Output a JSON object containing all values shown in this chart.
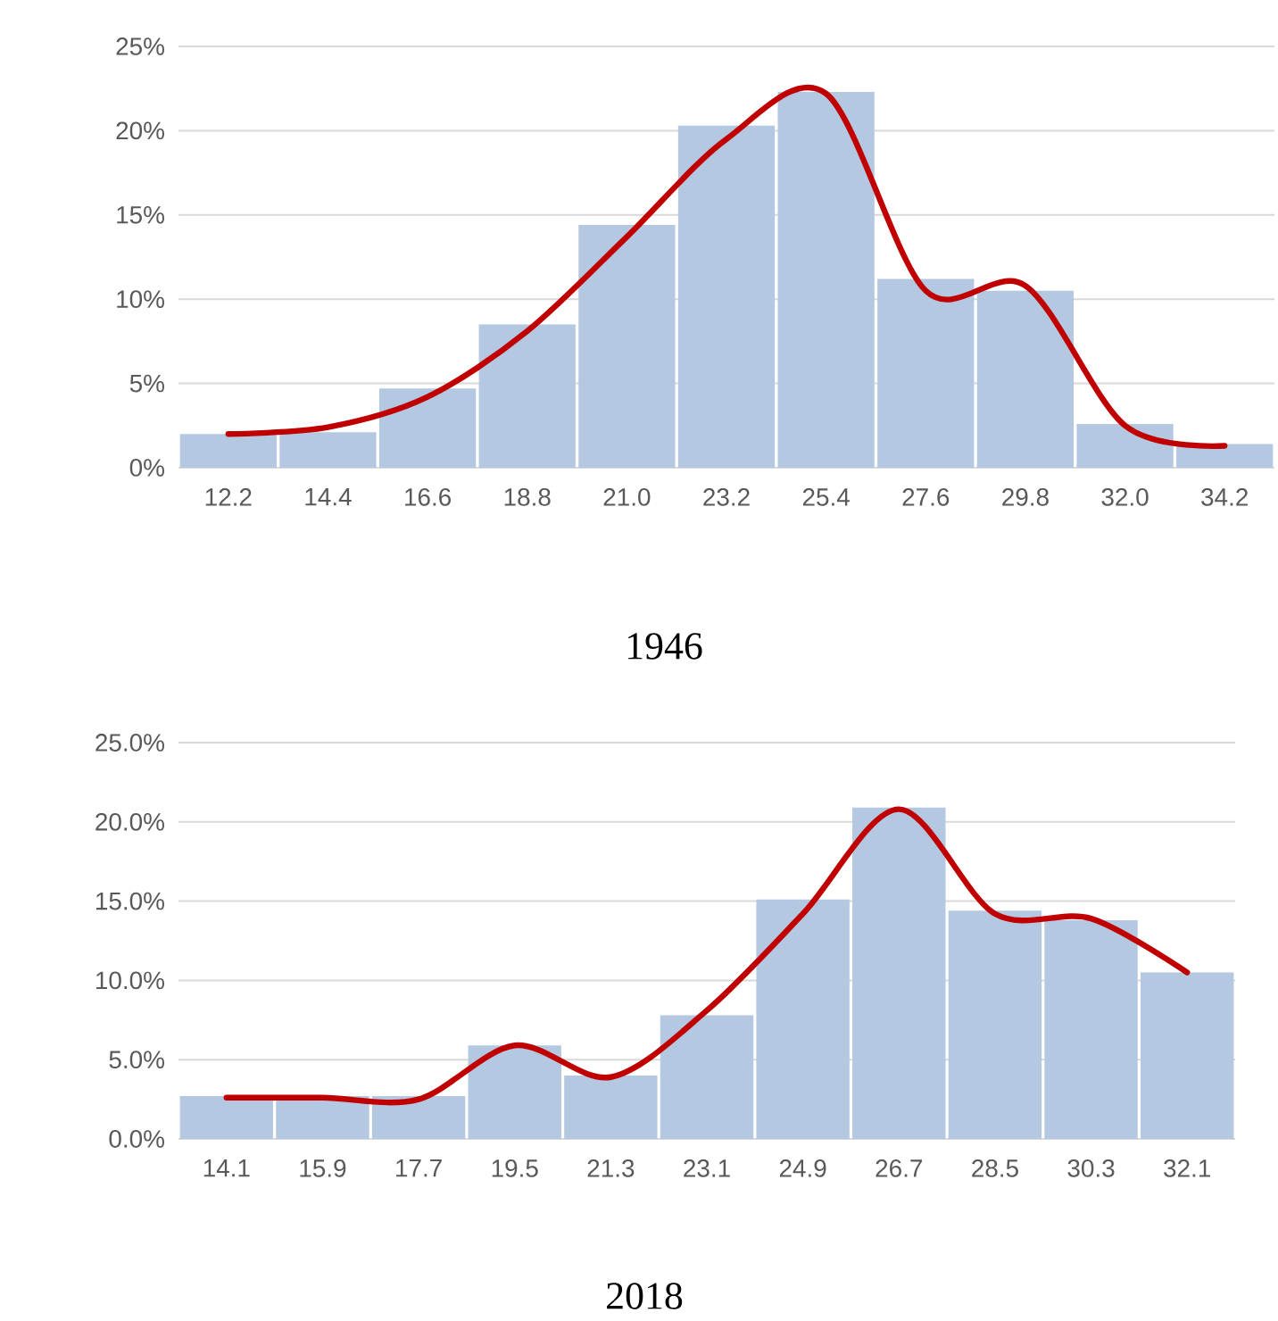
{
  "chart_data": [
    {
      "type": "bar",
      "title": "1946",
      "categories": [
        "12.2",
        "14.4",
        "16.6",
        "18.8",
        "21.0",
        "23.2",
        "25.4",
        "27.6",
        "29.8",
        "32.0",
        "34.2"
      ],
      "series": [
        {
          "color": "#b4c8e2",
          "values": [
            2.0,
            2.1,
            4.7,
            8.5,
            14.4,
            20.3,
            22.3,
            11.2,
            10.5,
            2.6,
            1.4
          ]
        },
        {
          "type": "line",
          "color": "#c00000",
          "values": [
            2.0,
            2.4,
            4.2,
            8.1,
            13.7,
            19.5,
            22.2,
            10.5,
            10.8,
            2.5,
            1.3
          ]
        }
      ],
      "ylim": [
        0,
        25
      ],
      "yticks": [
        {
          "value": 0,
          "label": "0%"
        },
        {
          "value": 5,
          "label": "5%"
        },
        {
          "value": 10,
          "label": "10%"
        },
        {
          "value": 15,
          "label": "15%"
        },
        {
          "value": 20,
          "label": "20%"
        },
        {
          "value": 25,
          "label": "25%"
        }
      ],
      "grid": "y"
    },
    {
      "type": "bar",
      "title": "2018",
      "categories": [
        "14.1",
        "15.9",
        "17.7",
        "19.5",
        "21.3",
        "23.1",
        "24.9",
        "26.7",
        "28.5",
        "30.3",
        "32.1"
      ],
      "series": [
        {
          "color": "#b4c8e2",
          "values": [
            2.7,
            2.7,
            2.7,
            5.9,
            4.0,
            7.8,
            15.1,
            20.9,
            14.4,
            13.8,
            10.5
          ]
        },
        {
          "type": "line",
          "color": "#c00000",
          "values": [
            2.6,
            2.6,
            2.5,
            5.9,
            3.9,
            8.1,
            14.2,
            20.8,
            14.2,
            13.9,
            10.5
          ]
        }
      ],
      "ylim": [
        0,
        25
      ],
      "yticks": [
        {
          "value": 0,
          "label": "0.0%"
        },
        {
          "value": 5,
          "label": "5.0%"
        },
        {
          "value": 10,
          "label": "10.0%"
        },
        {
          "value": 15,
          "label": "15.0%"
        },
        {
          "value": 20,
          "label": "20.0%"
        },
        {
          "value": 25,
          "label": "25.0%"
        }
      ],
      "grid": "y"
    }
  ]
}
